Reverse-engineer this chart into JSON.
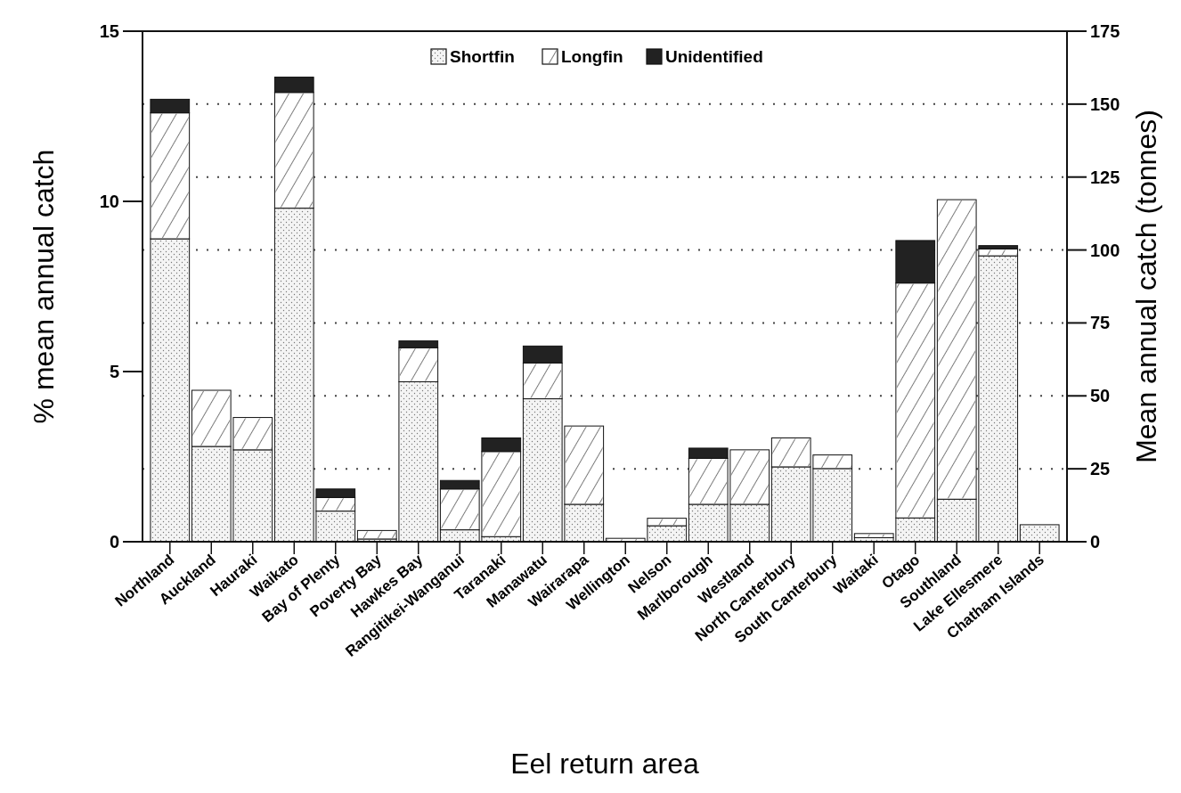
{
  "chart_data": {
    "type": "bar",
    "stacked": true,
    "xlabel": "Eel return area",
    "ylabel": "% mean annual catch",
    "y2label": "Mean annual catch (tonnes)",
    "categories": [
      "Northland",
      "Auckland",
      "Hauraki",
      "Waikato",
      "Bay of Plenty",
      "Poverty Bay",
      "Hawkes Bay",
      "Rangitikei-Wanganui",
      "Taranaki",
      "Manawatu",
      "Wairarapa",
      "Wellington",
      "Nelson",
      "Marlborough",
      "Westland",
      "North Canterbury",
      "South Canterbury",
      "Waitaki",
      "Otago",
      "Southland",
      "Lake Ellesmere",
      "Chatham Islands"
    ],
    "series": [
      {
        "name": "Shortfin",
        "color": "#f4f4f4",
        "values": [
          8.9,
          2.8,
          2.7,
          9.8,
          0.9,
          0.08,
          4.7,
          0.35,
          0.15,
          4.2,
          1.1,
          null,
          0.47,
          1.1,
          1.1,
          2.2,
          2.15,
          0.12,
          0.7,
          1.25,
          8.4,
          0.5
        ]
      },
      {
        "name": "Longfin",
        "color": "#ffffff",
        "values": [
          3.7,
          1.65,
          0.95,
          3.4,
          0.4,
          0.25,
          1.0,
          1.2,
          2.5,
          1.05,
          2.3,
          0.1,
          0.22,
          1.35,
          1.6,
          0.85,
          0.4,
          0.12,
          6.9,
          8.8,
          0.2,
          0
        ]
      },
      {
        "name": "Unidentified",
        "color": "#222222",
        "values": [
          0.4,
          0,
          0,
          0.45,
          0.25,
          0,
          0.2,
          0.25,
          0.4,
          0.5,
          0,
          0,
          0,
          0.3,
          0,
          0,
          0,
          0,
          1.25,
          0,
          0.1,
          0
        ]
      }
    ],
    "ylim": [
      0,
      15
    ],
    "yticks": [
      0,
      5,
      10,
      15
    ],
    "y2lim": [
      0,
      175
    ],
    "y2ticks": [
      0,
      25,
      50,
      75,
      100,
      125,
      150,
      175
    ],
    "grid": "y2",
    "legend": "top"
  }
}
